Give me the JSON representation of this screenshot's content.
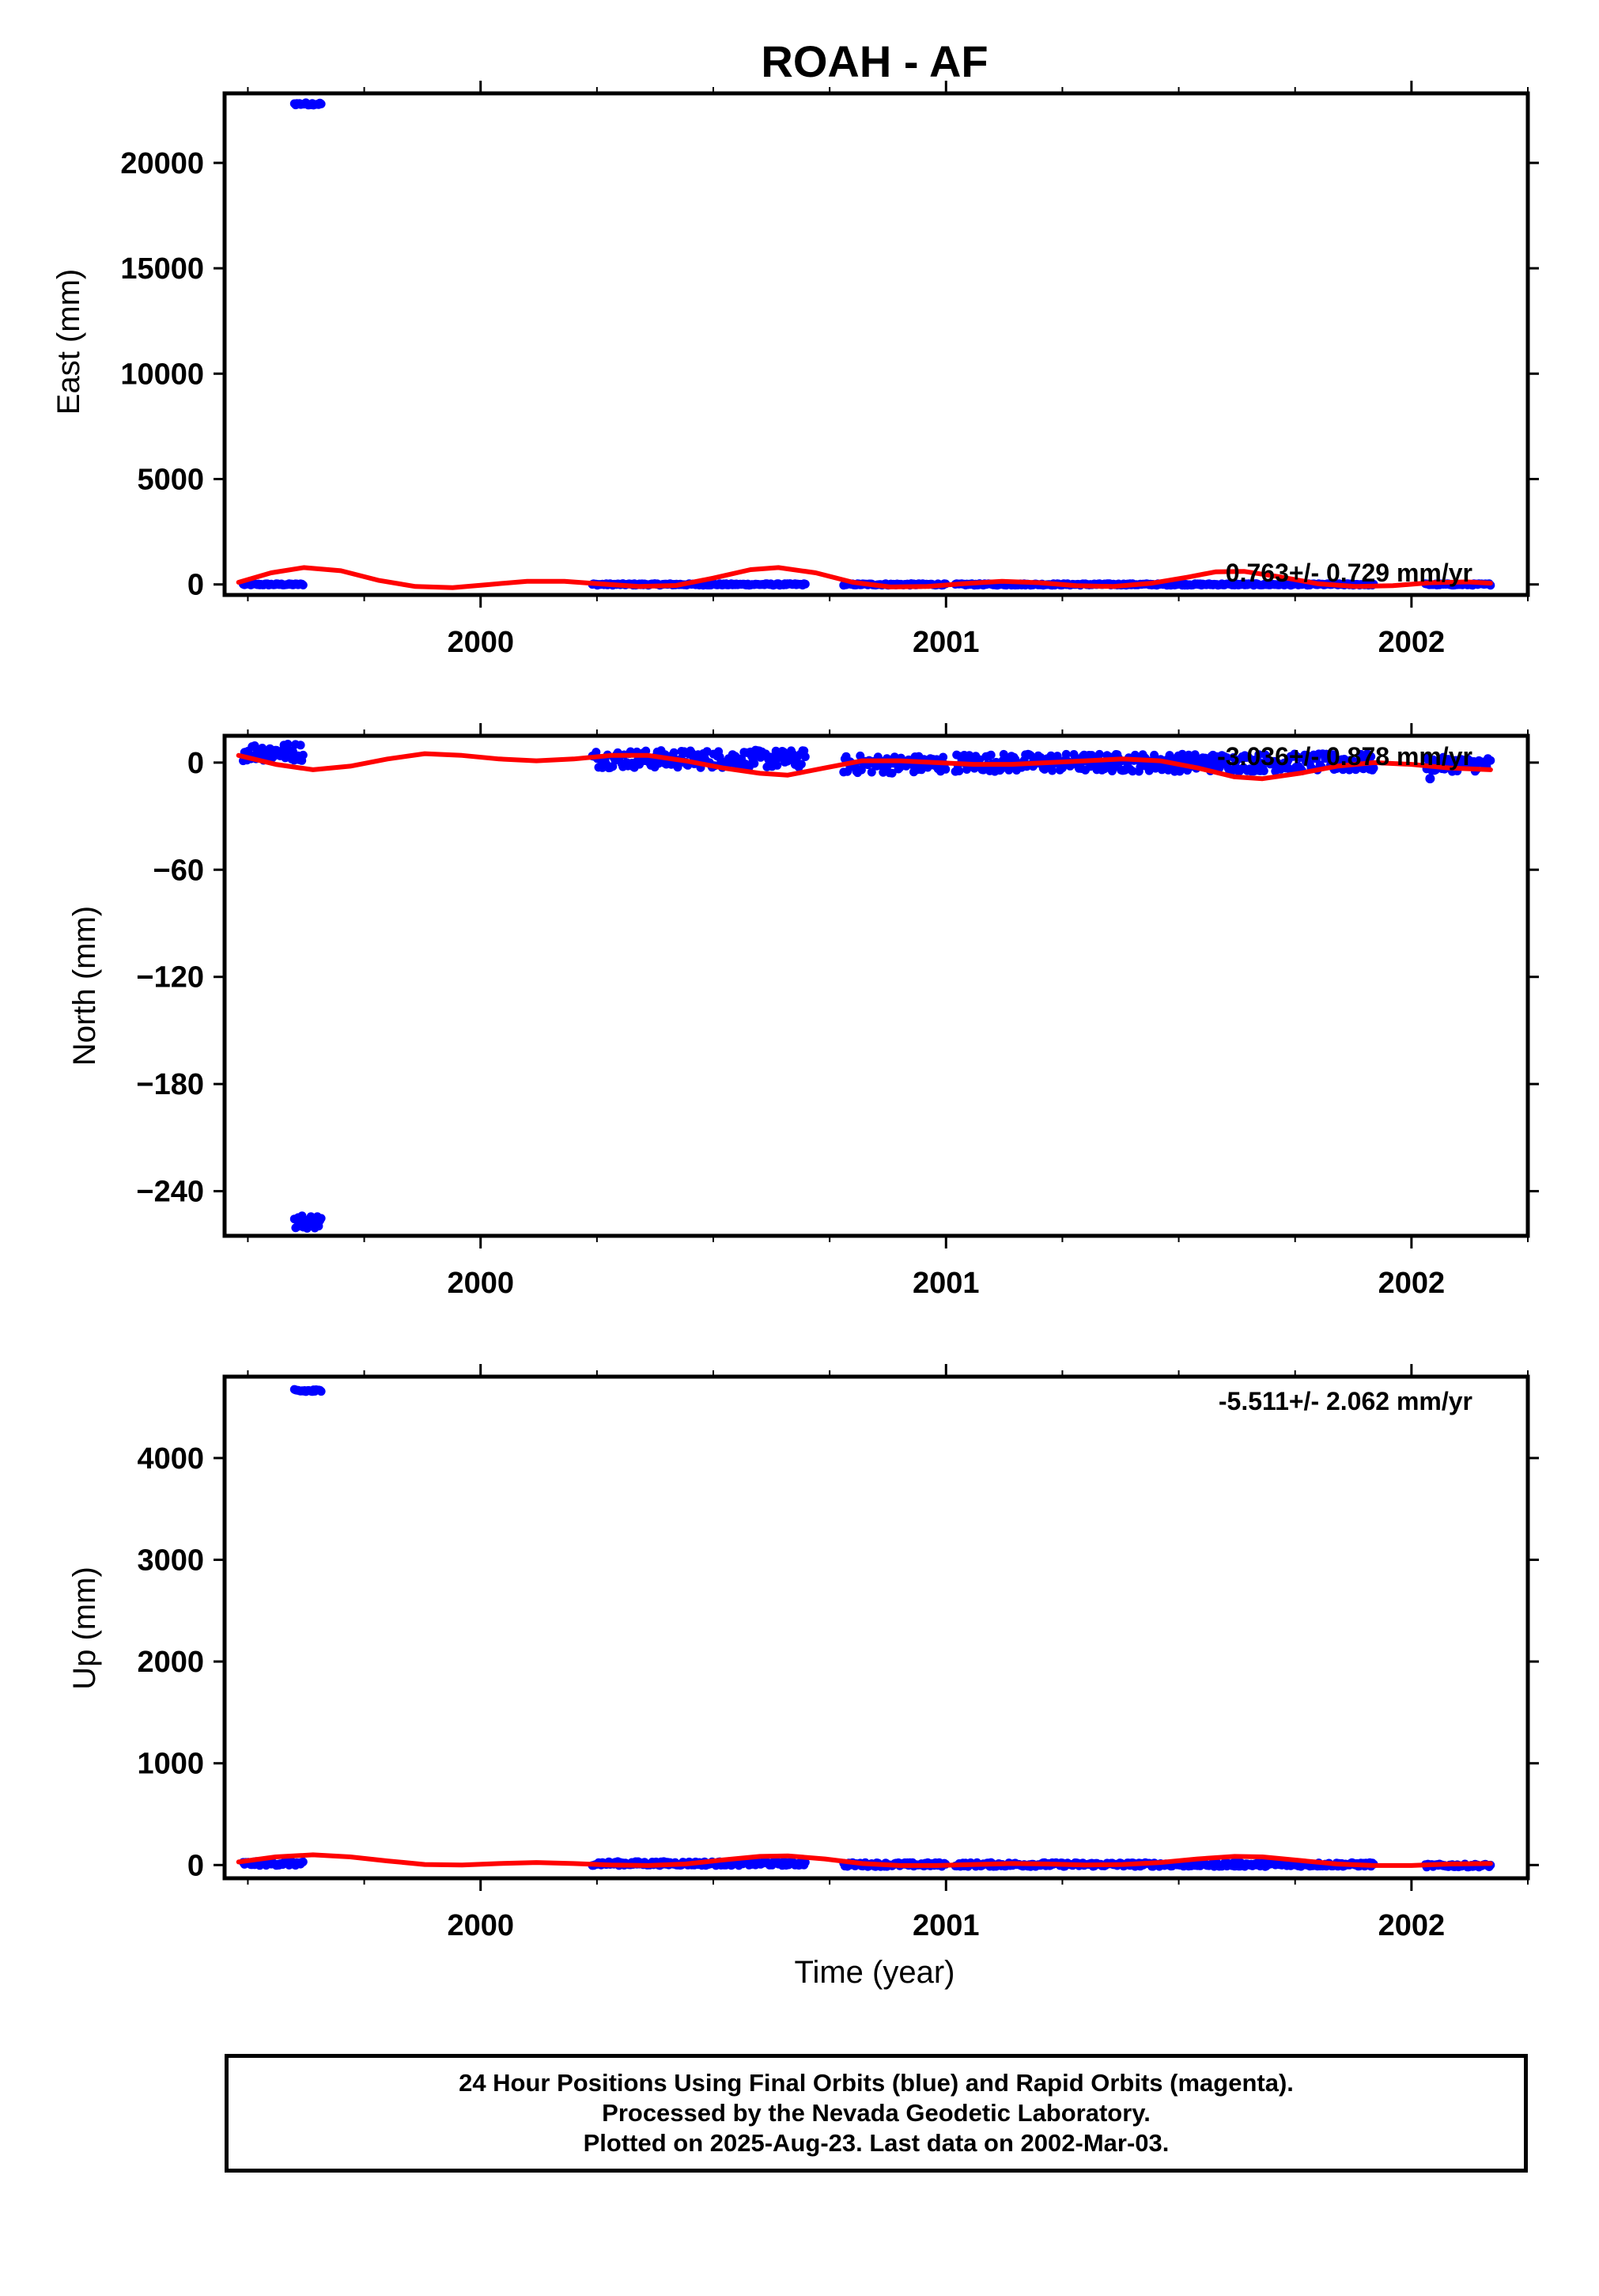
{
  "title": "ROAH - AF",
  "xlabel": "Time (year)",
  "colors": {
    "data": "#0000ff",
    "model": "#ff0000",
    "frame": "#000000"
  },
  "caption": [
    "24 Hour Positions Using Final Orbits (blue) and Rapid Orbits (magenta).",
    "Processed by the Nevada Geodetic Laboratory.",
    "Plotted on 2025-Aug-23. Last data on 2002-Mar-03."
  ],
  "chart_data": [
    {
      "type": "scatter",
      "name": "east",
      "ylabel": "East (mm)",
      "xlim": [
        1999.45,
        2002.25
      ],
      "ylim": [
        -500,
        23300
      ],
      "xticks": [
        2000,
        2001,
        2002
      ],
      "yticks": [
        0,
        5000,
        10000,
        15000,
        20000
      ],
      "rate_label": "0.763+/- 0.729 mm/yr",
      "segments": [
        {
          "x0": 1999.49,
          "x1": 1999.62,
          "y": 0,
          "spread": 40
        },
        {
          "x0": 1999.6,
          "x1": 1999.66,
          "y": 22800,
          "spread": 60
        },
        {
          "x0": 2000.24,
          "x1": 2000.7,
          "y": 0,
          "spread": 40
        },
        {
          "x0": 2000.78,
          "x1": 2001.0,
          "y": 0,
          "spread": 40
        },
        {
          "x0": 2001.02,
          "x1": 2001.92,
          "y": 0,
          "spread": 40
        },
        {
          "x0": 2002.03,
          "x1": 2002.17,
          "y": 0,
          "spread": 40
        }
      ],
      "model_curve": [
        [
          1999.48,
          100
        ],
        [
          1999.55,
          550
        ],
        [
          1999.62,
          800
        ],
        [
          1999.7,
          650
        ],
        [
          1999.78,
          200
        ],
        [
          1999.86,
          -100
        ],
        [
          1999.94,
          -150
        ],
        [
          2000.02,
          0
        ],
        [
          2000.1,
          150
        ],
        [
          2000.18,
          150
        ],
        [
          2000.26,
          20
        ],
        [
          2000.34,
          -100
        ],
        [
          2000.42,
          -50
        ],
        [
          2000.5,
          300
        ],
        [
          2000.58,
          700
        ],
        [
          2000.64,
          800
        ],
        [
          2000.72,
          550
        ],
        [
          2000.8,
          100
        ],
        [
          2000.88,
          -120
        ],
        [
          2000.96,
          -100
        ],
        [
          2001.04,
          40
        ],
        [
          2001.12,
          150
        ],
        [
          2001.2,
          80
        ],
        [
          2001.28,
          -60
        ],
        [
          2001.36,
          -100
        ],
        [
          2001.44,
          50
        ],
        [
          2001.52,
          350
        ],
        [
          2001.58,
          600
        ],
        [
          2001.64,
          620
        ],
        [
          2001.72,
          350
        ],
        [
          2001.8,
          30
        ],
        [
          2001.88,
          -100
        ],
        [
          2001.96,
          -60
        ],
        [
          2002.04,
          80
        ],
        [
          2002.12,
          120
        ],
        [
          2002.17,
          60
        ]
      ]
    },
    {
      "type": "scatter",
      "name": "north",
      "ylabel": "North (mm)",
      "xlim": [
        1999.45,
        2002.25
      ],
      "ylim": [
        -265,
        15
      ],
      "xticks": [
        2000,
        2001,
        2002
      ],
      "yticks": [
        -240,
        -180,
        -120,
        -60,
        0
      ],
      "rate_label": "-3.036+/- 0.878 mm/yr",
      "segments": [
        {
          "x0": 1999.49,
          "x1": 1999.62,
          "y": 6,
          "spread": 5
        },
        {
          "x0": 1999.6,
          "x1": 1999.66,
          "y": -257,
          "spread": 4
        },
        {
          "x0": 2000.24,
          "x1": 2000.7,
          "y": 2,
          "spread": 5
        },
        {
          "x0": 2000.78,
          "x1": 2001.0,
          "y": -1,
          "spread": 5
        },
        {
          "x0": 2001.02,
          "x1": 2001.92,
          "y": 0,
          "spread": 5
        },
        {
          "x0": 2002.03,
          "x1": 2002.17,
          "y": -1,
          "spread": 4
        }
      ],
      "model_curve": [
        [
          1999.48,
          4
        ],
        [
          1999.56,
          -1
        ],
        [
          1999.64,
          -4
        ],
        [
          1999.72,
          -2
        ],
        [
          1999.8,
          2
        ],
        [
          1999.88,
          5
        ],
        [
          1999.96,
          4
        ],
        [
          2000.04,
          2
        ],
        [
          2000.12,
          1
        ],
        [
          2000.2,
          2
        ],
        [
          2000.28,
          4
        ],
        [
          2000.36,
          4
        ],
        [
          2000.44,
          1
        ],
        [
          2000.52,
          -3
        ],
        [
          2000.6,
          -6
        ],
        [
          2000.66,
          -7
        ],
        [
          2000.74,
          -3
        ],
        [
          2000.82,
          1
        ],
        [
          2000.9,
          1
        ],
        [
          2000.98,
          0
        ],
        [
          2001.06,
          -1
        ],
        [
          2001.14,
          -1
        ],
        [
          2001.22,
          0
        ],
        [
          2001.3,
          1
        ],
        [
          2001.38,
          2
        ],
        [
          2001.46,
          1
        ],
        [
          2001.54,
          -3
        ],
        [
          2001.62,
          -8
        ],
        [
          2001.68,
          -9
        ],
        [
          2001.76,
          -6
        ],
        [
          2001.84,
          -2
        ],
        [
          2001.92,
          0
        ],
        [
          2002.0,
          -1
        ],
        [
          2002.08,
          -3
        ],
        [
          2002.17,
          -4
        ]
      ],
      "outliers": [
        [
          2002.04,
          -9
        ]
      ]
    },
    {
      "type": "scatter",
      "name": "up",
      "ylabel": "Up (mm)",
      "xlim": [
        1999.45,
        2002.25
      ],
      "ylim": [
        -130,
        4800
      ],
      "xticks": [
        2000,
        2001,
        2002
      ],
      "yticks": [
        0,
        1000,
        2000,
        3000,
        4000
      ],
      "rate_label": "-5.511+/- 2.062 mm/yr",
      "segments": [
        {
          "x0": 1999.49,
          "x1": 1999.62,
          "y": 15,
          "spread": 20
        },
        {
          "x0": 1999.6,
          "x1": 1999.66,
          "y": 4660,
          "spread": 15
        },
        {
          "x0": 2000.24,
          "x1": 2000.7,
          "y": 15,
          "spread": 20
        },
        {
          "x0": 2000.78,
          "x1": 2001.0,
          "y": 5,
          "spread": 20
        },
        {
          "x0": 2001.02,
          "x1": 2001.92,
          "y": 5,
          "spread": 20
        },
        {
          "x0": 2002.03,
          "x1": 2002.17,
          "y": -5,
          "spread": 15
        }
      ],
      "model_curve": [
        [
          1999.48,
          30
        ],
        [
          1999.56,
          80
        ],
        [
          1999.64,
          100
        ],
        [
          1999.72,
          80
        ],
        [
          1999.8,
          40
        ],
        [
          1999.88,
          5
        ],
        [
          1999.96,
          0
        ],
        [
          2000.04,
          15
        ],
        [
          2000.12,
          25
        ],
        [
          2000.2,
          15
        ],
        [
          2000.28,
          0
        ],
        [
          2000.36,
          -5
        ],
        [
          2000.44,
          10
        ],
        [
          2000.52,
          50
        ],
        [
          2000.6,
          85
        ],
        [
          2000.66,
          90
        ],
        [
          2000.74,
          60
        ],
        [
          2000.82,
          15
        ],
        [
          2000.9,
          -5
        ],
        [
          2000.98,
          -5
        ],
        [
          2001.06,
          5
        ],
        [
          2001.14,
          15
        ],
        [
          2001.22,
          10
        ],
        [
          2001.3,
          0
        ],
        [
          2001.38,
          5
        ],
        [
          2001.46,
          25
        ],
        [
          2001.54,
          60
        ],
        [
          2001.62,
          85
        ],
        [
          2001.68,
          80
        ],
        [
          2001.76,
          45
        ],
        [
          2001.84,
          10
        ],
        [
          2001.92,
          -5
        ],
        [
          2002.0,
          -5
        ],
        [
          2002.08,
          10
        ],
        [
          2002.17,
          15
        ]
      ]
    }
  ]
}
